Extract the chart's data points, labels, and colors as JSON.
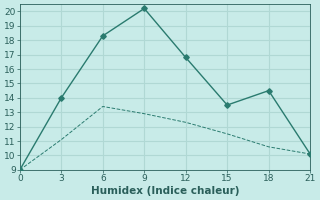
{
  "xlabel": "Humidex (Indice chaleur)",
  "line1_x": [
    0,
    3,
    6,
    9,
    12,
    15,
    18,
    21
  ],
  "line1_y": [
    9,
    14,
    18.3,
    20.2,
    16.8,
    13.5,
    14.5,
    10.1
  ],
  "line2_x": [
    0,
    3,
    6,
    9,
    12,
    15,
    18,
    21
  ],
  "line2_y": [
    9,
    11.1,
    13.4,
    12.9,
    12.3,
    11.5,
    10.6,
    10.1
  ],
  "line_color": "#2a7b6f",
  "bg_color": "#c8ebe8",
  "grid_color": "#b0d8d4",
  "xlim": [
    0,
    21
  ],
  "ylim": [
    9,
    20.5
  ],
  "xticks": [
    0,
    3,
    6,
    9,
    12,
    15,
    18,
    21
  ],
  "yticks": [
    9,
    10,
    11,
    12,
    13,
    14,
    15,
    16,
    17,
    18,
    19,
    20
  ],
  "font_color": "#2a5f5a",
  "xlabel_fontsize": 7.5,
  "tick_fontsize": 6.5
}
